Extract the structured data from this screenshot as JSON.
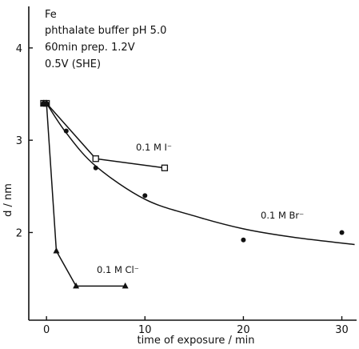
{
  "chart_data": {
    "type": "scatter",
    "annotations": {
      "element": "Fe",
      "line1": "phthalate buffer pH 5.0",
      "line2": "60min prep. 1.2V",
      "line3": "0.5V (SHE)"
    },
    "xlabel": "time of exposure / min",
    "ylabel": "d / nm",
    "xlim": [
      -1.8,
      31.5
    ],
    "ylim": [
      1.05,
      4.45
    ],
    "xticks": [
      0,
      10,
      20,
      30
    ],
    "yticks": [
      2,
      3,
      4
    ],
    "series": [
      {
        "name": "0.1 M I⁻",
        "marker": "open-square",
        "connect": "straight",
        "points": [
          [
            -0.3,
            3.4
          ],
          [
            0,
            3.4
          ],
          [
            5,
            2.8
          ],
          [
            12,
            2.7
          ]
        ],
        "color": "#111111"
      },
      {
        "name": "0.1 M Br⁻",
        "marker": "filled-circle",
        "connect": "smooth",
        "points": [
          [
            -0.3,
            3.4
          ],
          [
            0,
            3.4
          ],
          [
            2,
            3.1
          ],
          [
            5,
            2.7
          ],
          [
            10,
            2.4
          ],
          [
            20,
            1.92
          ],
          [
            30,
            2.0
          ]
        ],
        "fit": [
          [
            0,
            3.4
          ],
          [
            2,
            3.08
          ],
          [
            5,
            2.72
          ],
          [
            10,
            2.36
          ],
          [
            15,
            2.18
          ],
          [
            20,
            2.04
          ],
          [
            25,
            1.95
          ],
          [
            31.3,
            1.87
          ]
        ],
        "color": "#111111"
      },
      {
        "name": "0.1 M Cl⁻",
        "marker": "filled-triangle",
        "connect": "straight",
        "points": [
          [
            -0.3,
            3.4
          ],
          [
            0,
            3.4
          ],
          [
            1,
            1.8
          ],
          [
            3,
            1.42
          ],
          [
            8,
            1.42
          ]
        ],
        "color": "#111111"
      }
    ]
  }
}
